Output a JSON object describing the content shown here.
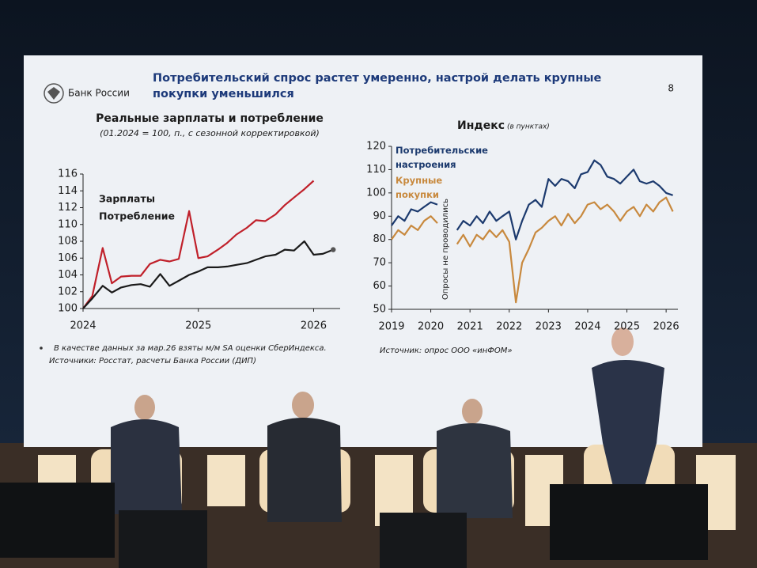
{
  "header": {
    "logo_text": "Банк России",
    "title": "Потребительский спрос растет умеренно, настрой делать крупные покупки уменьшился",
    "page_number": 8
  },
  "chart_data": [
    {
      "type": "line",
      "title": "Реальные зарплаты и потребление",
      "subtitle": "(01.2024 = 100, п., с сезонной корректировкой)",
      "x": [
        2024,
        2024.08,
        2024.17,
        2024.25,
        2024.33,
        2024.42,
        2024.5,
        2024.58,
        2024.67,
        2024.75,
        2024.83,
        2024.92,
        2025,
        2025.08,
        2025.17,
        2025.25,
        2025.33,
        2025.42,
        2025.5,
        2025.58,
        2025.67,
        2025.75,
        2025.83,
        2025.92,
        2026,
        2026.08,
        2026.17
      ],
      "xlim": [
        2024,
        2026.23
      ],
      "xticks": [
        2024,
        2025,
        2026
      ],
      "ylim": [
        100,
        116
      ],
      "yticks": [
        100,
        102,
        104,
        106,
        108,
        110,
        112,
        114,
        116
      ],
      "series": [
        {
          "name": "Зарплаты",
          "color": "#c0202a",
          "values": [
            100,
            101.5,
            107.2,
            103,
            103.8,
            103.9,
            103.9,
            105.3,
            105.8,
            105.6,
            105.9,
            111.6,
            106,
            106.2,
            107,
            107.8,
            108.8,
            109.6,
            110.5,
            110.4,
            111.2,
            112.3,
            113.2,
            114.2,
            115.2,
            null,
            null
          ]
        },
        {
          "name": "Потребление",
          "color": "#1a1a1a",
          "values": [
            100,
            101.2,
            102.7,
            101.9,
            102.5,
            102.8,
            102.9,
            102.6,
            104.1,
            102.7,
            103.3,
            104,
            104.4,
            104.9,
            104.9,
            105,
            105.2,
            105.4,
            105.8,
            106.2,
            106.4,
            107,
            106.9,
            108,
            106.4,
            106.5,
            107
          ]
        }
      ],
      "footnotes": [
        "В качестве данных за мар.26 взяты м/м SA оценки СберИндекса.",
        "Источники: Росстат, расчеты Банка России (ДИП)"
      ]
    },
    {
      "type": "line",
      "title": "Индекс",
      "subtitle": "(в пунктах)",
      "x": [
        2019,
        2019.17,
        2019.33,
        2019.5,
        2019.67,
        2019.83,
        2020,
        2020.17,
        2020.33,
        2020.5,
        2020.67,
        2020.83,
        2021,
        2021.17,
        2021.33,
        2021.5,
        2021.67,
        2021.83,
        2022,
        2022.17,
        2022.33,
        2022.5,
        2022.67,
        2022.83,
        2023,
        2023.17,
        2023.33,
        2023.5,
        2023.67,
        2023.83,
        2024,
        2024.17,
        2024.33,
        2024.5,
        2024.67,
        2024.83,
        2025,
        2025.17,
        2025.33,
        2025.5,
        2025.67,
        2025.83,
        2026,
        2026.17
      ],
      "xlim": [
        2019,
        2026.3
      ],
      "xticks": [
        2019,
        2020,
        2021,
        2022,
        2023,
        2024,
        2025,
        2026
      ],
      "ylim": [
        50,
        120
      ],
      "yticks": [
        50,
        60,
        70,
        80,
        90,
        100,
        110,
        120
      ],
      "series": [
        {
          "name": "Потребительские настроения",
          "color": "#1c3a6e",
          "values": [
            86,
            90,
            88,
            93,
            92,
            94,
            96,
            95,
            null,
            null,
            84,
            88,
            86,
            90,
            87,
            92,
            88,
            90,
            92,
            80,
            88,
            95,
            97,
            94,
            106,
            103,
            106,
            105,
            102,
            108,
            109,
            114,
            112,
            107,
            106,
            104,
            107,
            110,
            105,
            104,
            105,
            103,
            100,
            99
          ]
        },
        {
          "name": "Крупные покупки",
          "color": "#c8893e",
          "values": [
            80,
            84,
            82,
            86,
            84,
            88,
            90,
            87,
            null,
            null,
            78,
            82,
            77,
            82,
            80,
            84,
            81,
            84,
            79,
            53,
            70,
            76,
            83,
            85,
            88,
            90,
            86,
            91,
            87,
            90,
            95,
            96,
            93,
            95,
            92,
            88,
            92,
            94,
            90,
            95,
            92,
            96,
            98,
            92
          ]
        }
      ],
      "annotations": [
        "Опросы не проводились"
      ],
      "source": "Источник: опрос ООО «инФОМ»"
    }
  ]
}
